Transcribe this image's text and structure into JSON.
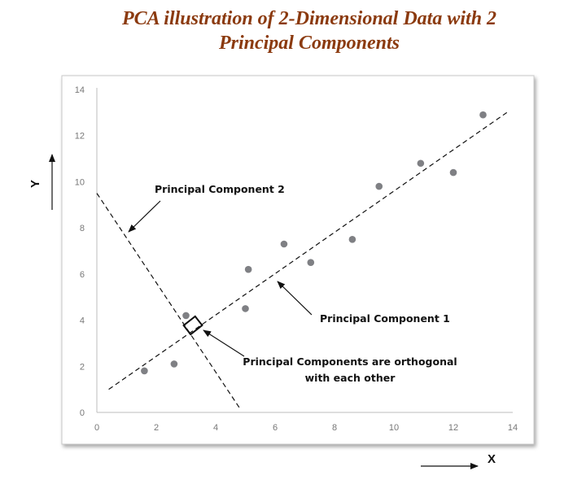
{
  "title_line1": "PCA illustration of 2-Dimensional Data with 2",
  "title_line2": "Principal Components",
  "chart_data": {
    "type": "scatter",
    "xlim": [
      0,
      14
    ],
    "ylim": [
      0,
      14
    ],
    "x_ticks": [
      "0",
      "2",
      "4",
      "6",
      "8",
      "10",
      "12",
      "14"
    ],
    "y_ticks": [
      "0",
      "2",
      "4",
      "6",
      "8",
      "10",
      "12",
      "14"
    ],
    "xlabel": "X",
    "ylabel": "Y",
    "grid": false,
    "points": [
      {
        "x": 1.6,
        "y": 1.8
      },
      {
        "x": 2.6,
        "y": 2.1
      },
      {
        "x": 3.0,
        "y": 4.2
      },
      {
        "x": 5.0,
        "y": 4.5
      },
      {
        "x": 5.1,
        "y": 6.2
      },
      {
        "x": 6.3,
        "y": 7.3
      },
      {
        "x": 7.2,
        "y": 6.5
      },
      {
        "x": 8.6,
        "y": 7.5
      },
      {
        "x": 9.5,
        "y": 9.8
      },
      {
        "x": 10.9,
        "y": 10.8
      },
      {
        "x": 12.0,
        "y": 10.4
      },
      {
        "x": 13.0,
        "y": 12.9
      }
    ],
    "component_lines": [
      {
        "label": "Principal Component 1",
        "from": [
          0.4,
          1.0
        ],
        "to": [
          13.8,
          13.0
        ]
      },
      {
        "label": "Principal Component 2",
        "from": [
          0.0,
          9.5
        ],
        "to": [
          4.8,
          0.2
        ]
      }
    ],
    "annotations": {
      "pc1": "Principal Component 1",
      "pc2": "Principal Component 2",
      "orthogonal_line1": "Principal Components are orthogonal",
      "orthogonal_line2": "with each other"
    }
  }
}
